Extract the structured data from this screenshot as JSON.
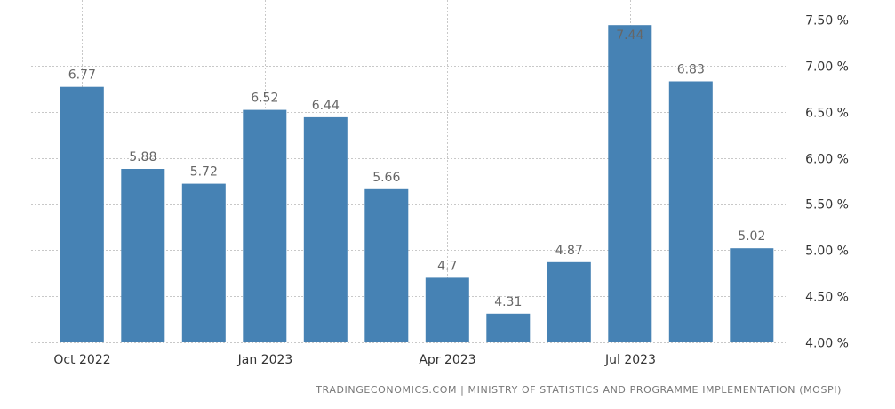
{
  "chart_data": {
    "type": "bar",
    "categories": [
      "Oct 2022",
      "Nov 2022",
      "Dec 2022",
      "Jan 2023",
      "Feb 2023",
      "Mar 2023",
      "Apr 2023",
      "May 2023",
      "Jun 2023",
      "Jul 2023",
      "Aug 2023",
      "Sep 2023"
    ],
    "values": [
      6.77,
      5.88,
      5.72,
      6.52,
      6.44,
      5.66,
      4.7,
      4.31,
      4.87,
      7.44,
      6.83,
      5.02
    ],
    "data_labels": [
      "6.77",
      "5.88",
      "5.72",
      "6.52",
      "6.44",
      "5.66",
      "4.7",
      "4.31",
      "4.87",
      "7.44",
      "6.83",
      "5.02"
    ],
    "x_tick_labels": [
      {
        "category": "Oct 2022",
        "label": "Oct 2022"
      },
      {
        "category": "Jan 2023",
        "label": "Jan 2023"
      },
      {
        "category": "Apr 2023",
        "label": "Apr 2023"
      },
      {
        "category": "Jul 2023",
        "label": "Jul 2023"
      }
    ],
    "y_ticks": [
      4.0,
      4.5,
      5.0,
      5.5,
      6.0,
      6.5,
      7.0,
      7.5
    ],
    "y_tick_labels": [
      "4.00 %",
      "4.50 %",
      "5.00 %",
      "5.50 %",
      "6.00 %",
      "6.50 %",
      "7.00 %",
      "7.50 %"
    ],
    "ylim": [
      4.0,
      7.5
    ],
    "y_axis_position": "right",
    "grid": true,
    "title": "",
    "xlabel": "",
    "ylabel": "",
    "colors": {
      "bar": "#4682b4",
      "grid": "#c8c8c8",
      "data_label": "#666666",
      "tick_label": "#333333"
    }
  },
  "source": "TRADINGECONOMICS.COM | MINISTRY OF STATISTICS AND PROGRAMME IMPLEMENTATION (MOSPI)"
}
